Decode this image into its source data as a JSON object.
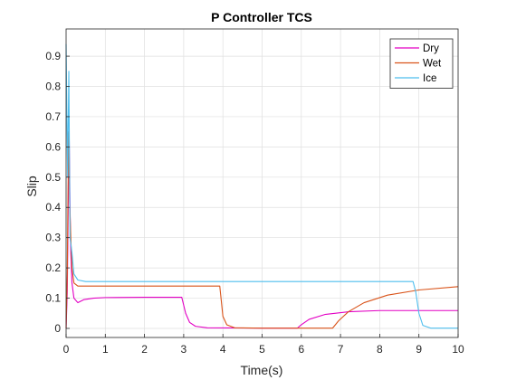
{
  "chart_data": {
    "type": "line",
    "title": "P Controller TCS",
    "xlabel": "Time(s)",
    "ylabel": "Slip",
    "xlim": [
      0,
      10
    ],
    "ylim": [
      -0.03,
      0.99
    ],
    "xticks": [
      "0",
      "1",
      "2",
      "3",
      "4",
      "5",
      "6",
      "7",
      "8",
      "9",
      "10"
    ],
    "yticks": [
      "0",
      "0.1",
      "0.2",
      "0.3",
      "0.4",
      "0.5",
      "0.6",
      "0.7",
      "0.8",
      "0.9"
    ],
    "grid": true,
    "legend_position": "top-right",
    "series": [
      {
        "name": "Dry",
        "color": "#e300c4",
        "points": [
          [
            0,
            0
          ],
          [
            0.03,
            0.12
          ],
          [
            0.06,
            0.47
          ],
          [
            0.08,
            0.62
          ],
          [
            0.1,
            0.4
          ],
          [
            0.12,
            0.25
          ],
          [
            0.15,
            0.15
          ],
          [
            0.2,
            0.1
          ],
          [
            0.3,
            0.085
          ],
          [
            0.45,
            0.095
          ],
          [
            0.7,
            0.1
          ],
          [
            1,
            0.102
          ],
          [
            2,
            0.103
          ],
          [
            2.95,
            0.103
          ],
          [
            3.05,
            0.05
          ],
          [
            3.15,
            0.02
          ],
          [
            3.3,
            0.007
          ],
          [
            3.6,
            0.002
          ],
          [
            5,
            0.001
          ],
          [
            5.9,
            0.001
          ],
          [
            6.0,
            0.012
          ],
          [
            6.2,
            0.03
          ],
          [
            6.6,
            0.046
          ],
          [
            7.2,
            0.055
          ],
          [
            8,
            0.059
          ],
          [
            9,
            0.059
          ],
          [
            10,
            0.059
          ]
        ]
      },
      {
        "name": "Wet",
        "color": "#d95319",
        "points": [
          [
            0,
            0
          ],
          [
            0.03,
            0.18
          ],
          [
            0.05,
            0.47
          ],
          [
            0.07,
            0.65
          ],
          [
            0.09,
            0.42
          ],
          [
            0.12,
            0.3
          ],
          [
            0.15,
            0.2
          ],
          [
            0.2,
            0.15
          ],
          [
            0.3,
            0.14
          ],
          [
            1,
            0.14
          ],
          [
            2,
            0.14
          ],
          [
            3,
            0.14
          ],
          [
            3.92,
            0.14
          ],
          [
            3.96,
            0.09
          ],
          [
            4.0,
            0.04
          ],
          [
            4.1,
            0.012
          ],
          [
            4.3,
            0.002
          ],
          [
            5,
            0.001
          ],
          [
            6,
            0.001
          ],
          [
            6.8,
            0.001
          ],
          [
            6.95,
            0.025
          ],
          [
            7.2,
            0.055
          ],
          [
            7.6,
            0.085
          ],
          [
            8.2,
            0.11
          ],
          [
            9,
            0.127
          ],
          [
            10,
            0.138
          ]
        ]
      },
      {
        "name": "Ice",
        "color": "#4dbeee",
        "points": [
          [
            0,
            0.94
          ],
          [
            0.04,
            0.5
          ],
          [
            0.07,
            0.85
          ],
          [
            0.1,
            0.3
          ],
          [
            0.15,
            0.25
          ],
          [
            0.2,
            0.18
          ],
          [
            0.3,
            0.16
          ],
          [
            0.5,
            0.155
          ],
          [
            1,
            0.155
          ],
          [
            2,
            0.155
          ],
          [
            3,
            0.155
          ],
          [
            4,
            0.155
          ],
          [
            5,
            0.155
          ],
          [
            6,
            0.155
          ],
          [
            7,
            0.155
          ],
          [
            8,
            0.155
          ],
          [
            8.85,
            0.155
          ],
          [
            8.92,
            0.12
          ],
          [
            9.0,
            0.05
          ],
          [
            9.1,
            0.01
          ],
          [
            9.3,
            0.001
          ],
          [
            10,
            0.001
          ]
        ]
      }
    ]
  }
}
